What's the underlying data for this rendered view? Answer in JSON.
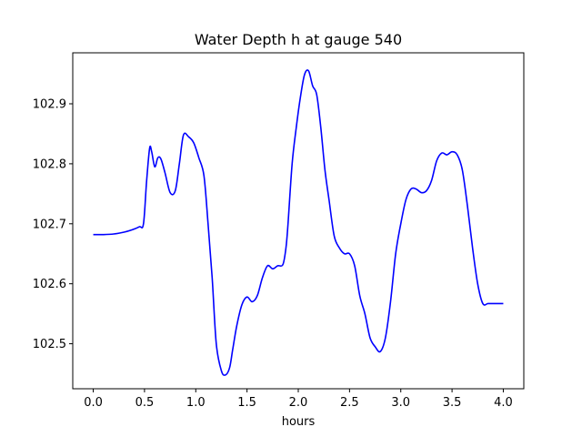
{
  "chart_data": {
    "type": "line",
    "title": "Water Depth h at gauge 540",
    "xlabel": "hours",
    "ylabel": "",
    "xlim": [
      -0.2,
      4.2
    ],
    "ylim": [
      102.425,
      102.985
    ],
    "xticks": [
      0.0,
      0.5,
      1.0,
      1.5,
      2.0,
      2.5,
      3.0,
      3.5,
      4.0
    ],
    "xtick_labels": [
      "0.0",
      "0.5",
      "1.0",
      "1.5",
      "2.0",
      "2.5",
      "3.0",
      "3.5",
      "4.0"
    ],
    "yticks": [
      102.5,
      102.6,
      102.7,
      102.8,
      102.9
    ],
    "ytick_labels": [
      "102.5",
      "102.6",
      "102.7",
      "102.8",
      "102.9"
    ],
    "grid": false,
    "series": [
      {
        "color": "#0000ff",
        "x": [
          0.0,
          0.1,
          0.2,
          0.3,
          0.38,
          0.45,
          0.49,
          0.52,
          0.55,
          0.57,
          0.6,
          0.63,
          0.66,
          0.7,
          0.75,
          0.8,
          0.84,
          0.88,
          0.93,
          0.98,
          1.03,
          1.08,
          1.12,
          1.16,
          1.2,
          1.25,
          1.29,
          1.33,
          1.36,
          1.4,
          1.45,
          1.5,
          1.55,
          1.6,
          1.65,
          1.7,
          1.75,
          1.8,
          1.85,
          1.88,
          1.9,
          1.94,
          1.98,
          2.02,
          2.06,
          2.1,
          2.14,
          2.18,
          2.22,
          2.26,
          2.3,
          2.35,
          2.4,
          2.45,
          2.5,
          2.55,
          2.6,
          2.65,
          2.7,
          2.75,
          2.8,
          2.85,
          2.9,
          2.95,
          3.0,
          3.05,
          3.1,
          3.15,
          3.2,
          3.25,
          3.3,
          3.35,
          3.4,
          3.45,
          3.5,
          3.55,
          3.6,
          3.65,
          3.7,
          3.75,
          3.8,
          3.85,
          3.9,
          3.95,
          4.0
        ],
        "y": [
          102.682,
          102.682,
          102.683,
          102.686,
          102.69,
          102.695,
          102.7,
          102.77,
          102.826,
          102.82,
          102.795,
          102.81,
          102.808,
          102.785,
          102.752,
          102.755,
          102.8,
          102.848,
          102.845,
          102.835,
          102.81,
          102.78,
          102.7,
          102.61,
          102.5,
          102.455,
          102.448,
          102.46,
          102.49,
          102.53,
          102.565,
          102.578,
          102.57,
          102.58,
          102.61,
          102.63,
          102.625,
          102.63,
          102.632,
          102.66,
          102.7,
          102.8,
          102.86,
          102.91,
          102.948,
          102.955,
          102.93,
          102.915,
          102.86,
          102.79,
          102.74,
          102.68,
          102.66,
          102.65,
          102.65,
          102.63,
          102.58,
          102.55,
          102.51,
          102.495,
          102.487,
          102.51,
          102.57,
          102.65,
          102.7,
          102.74,
          102.758,
          102.758,
          102.752,
          102.755,
          102.772,
          102.805,
          102.818,
          102.815,
          102.82,
          102.815,
          102.79,
          102.73,
          102.66,
          102.6,
          102.567,
          102.567,
          102.567,
          102.567,
          102.567
        ]
      }
    ]
  }
}
